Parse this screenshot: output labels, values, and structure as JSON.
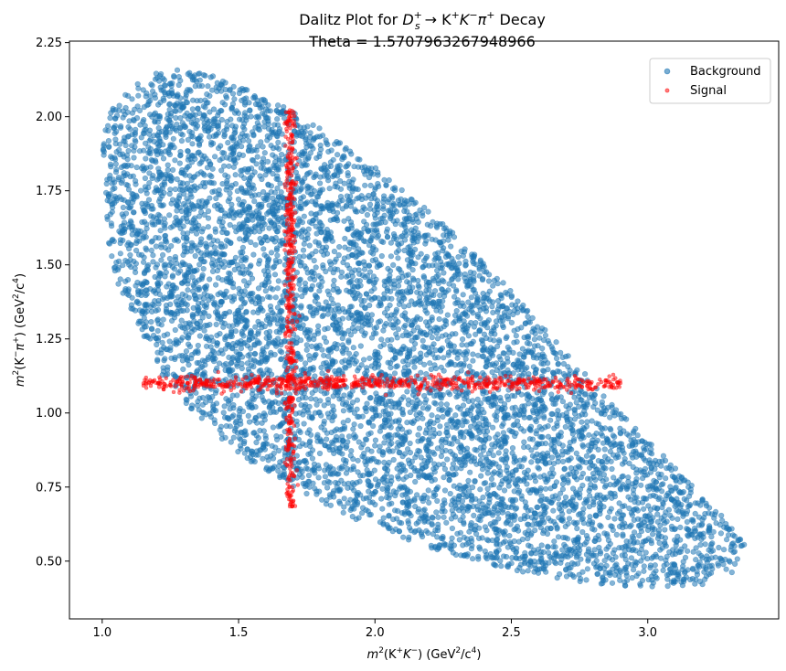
{
  "chart_data": {
    "type": "scatter",
    "title_prefix": "Dalitz Plot for ",
    "title_decay": "D",
    "title_decay_sub": "s",
    "title_decay_sup": "+",
    "title_arrow": " → K",
    "title_k1_sup": "+",
    "title_k2": "K",
    "title_k2_sup": "−",
    "title_pi": "π",
    "title_pi_sup": "+",
    "title_suffix": " Decay",
    "subtitle": "Theta = 1.5707963267948966",
    "xlabel_m": "m",
    "xlabel_sq": "2",
    "xlabel_open": "(K",
    "xlabel_k1_sup": "+",
    "xlabel_k2": "K",
    "xlabel_k2_sup": "−",
    "xlabel_close": ") (GeV",
    "xlabel_unit_sq": "2",
    "xlabel_unit_mid": "/c",
    "xlabel_unit_4": "4",
    "xlabel_end": ")",
    "ylabel_m": "m",
    "ylabel_sq": "2",
    "ylabel_open": "(K",
    "ylabel_k_sup": "−",
    "ylabel_pi": "π",
    "ylabel_pi_sup": "+",
    "ylabel_close": ") (GeV",
    "ylabel_unit_sq": "2",
    "ylabel_unit_mid": "/c",
    "ylabel_unit_4": "4",
    "ylabel_end": ")",
    "xlim": [
      0.88,
      3.48
    ],
    "ylim": [
      0.305,
      2.255
    ],
    "xticks": [
      1.0,
      1.5,
      2.0,
      2.5,
      3.0
    ],
    "xtick_labels": [
      "1.0",
      "1.5",
      "2.0",
      "2.5",
      "3.0"
    ],
    "yticks": [
      0.5,
      0.75,
      1.0,
      1.25,
      1.5,
      1.75,
      2.0,
      2.25
    ],
    "ytick_labels": [
      "0.50",
      "0.75",
      "1.00",
      "1.25",
      "1.50",
      "1.75",
      "2.00",
      "2.25"
    ],
    "grid": false,
    "legend_position": "top-right",
    "series": [
      {
        "name": "Background",
        "color": "#1f77b4",
        "count": 7000,
        "region_boundary": [
          [
            1.0,
            1.95
          ],
          [
            1.02,
            1.57
          ],
          [
            1.05,
            1.45
          ],
          [
            1.12,
            1.32
          ],
          [
            1.2,
            1.15
          ],
          [
            1.32,
            1.02
          ],
          [
            1.45,
            0.9
          ],
          [
            1.6,
            0.8
          ],
          [
            1.8,
            0.7
          ],
          [
            2.0,
            0.61
          ],
          [
            2.25,
            0.53
          ],
          [
            2.5,
            0.47
          ],
          [
            2.75,
            0.43
          ],
          [
            3.0,
            0.41
          ],
          [
            3.2,
            0.42
          ],
          [
            3.31,
            0.46
          ],
          [
            3.36,
            0.55
          ],
          [
            3.3,
            0.63
          ],
          [
            3.2,
            0.72
          ],
          [
            3.0,
            0.91
          ],
          [
            2.8,
            1.1
          ],
          [
            2.6,
            1.31
          ],
          [
            2.4,
            1.51
          ],
          [
            2.2,
            1.68
          ],
          [
            2.0,
            1.83
          ],
          [
            1.8,
            1.96
          ],
          [
            1.6,
            2.07
          ],
          [
            1.4,
            2.14
          ],
          [
            1.3,
            2.16
          ],
          [
            1.2,
            2.15
          ],
          [
            1.1,
            2.1
          ],
          [
            1.04,
            2.03
          ]
        ]
      },
      {
        "name": "Signal",
        "color": "#ff0000",
        "components": [
          {
            "orientation": "horizontal",
            "y_center": 1.1,
            "y_spread": 0.012,
            "x_range": [
              1.15,
              2.9
            ],
            "count": 700
          },
          {
            "orientation": "vertical",
            "x_center": 1.69,
            "x_spread": 0.01,
            "y_range": [
              0.68,
              2.03
            ],
            "count": 450
          }
        ]
      }
    ]
  }
}
